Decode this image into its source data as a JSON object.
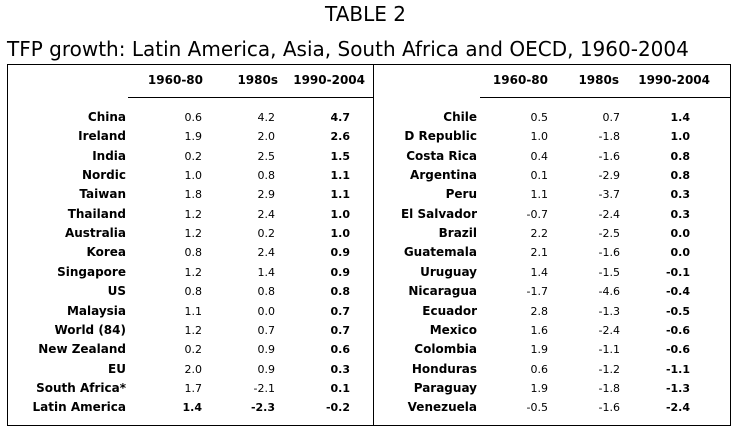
{
  "table_title": "TABLE 2",
  "subtitle": "TFP growth: Latin America, Asia, South Africa and OECD, 1960-2004",
  "columns": [
    "1960-80",
    "1980s",
    "1990-2004"
  ],
  "left_rows": [
    {
      "label": "China",
      "v1": "0.6",
      "v2": "4.2",
      "v3": "4.7",
      "bold": [
        false,
        false,
        true
      ]
    },
    {
      "label": "Ireland",
      "v1": "1.9",
      "v2": "2.0",
      "v3": "2.6",
      "bold": [
        false,
        false,
        true
      ]
    },
    {
      "label": "India",
      "v1": "0.2",
      "v2": "2.5",
      "v3": "1.5",
      "bold": [
        false,
        false,
        true
      ]
    },
    {
      "label": "Nordic",
      "v1": "1.0",
      "v2": "0.8",
      "v3": "1.1",
      "bold": [
        false,
        false,
        true
      ]
    },
    {
      "label": "Taiwan",
      "v1": "1.8",
      "v2": "2.9",
      "v3": "1.1",
      "bold": [
        false,
        false,
        true
      ]
    },
    {
      "label": "Thailand",
      "v1": "1.2",
      "v2": "2.4",
      "v3": "1.0",
      "bold": [
        false,
        false,
        true
      ]
    },
    {
      "label": "Australia",
      "v1": "1.2",
      "v2": "0.2",
      "v3": "1.0",
      "bold": [
        false,
        false,
        true
      ]
    },
    {
      "label": "Korea",
      "v1": "0.8",
      "v2": "2.4",
      "v3": "0.9",
      "bold": [
        false,
        false,
        true
      ]
    },
    {
      "label": "Singapore",
      "v1": "1.2",
      "v2": "1.4",
      "v3": "0.9",
      "bold": [
        false,
        false,
        true
      ]
    },
    {
      "label": "US",
      "v1": "0.8",
      "v2": "0.8",
      "v3": "0.8",
      "bold": [
        false,
        false,
        true
      ]
    },
    {
      "label": "Malaysia",
      "v1": "1.1",
      "v2": "0.0",
      "v3": "0.7",
      "bold": [
        false,
        false,
        true
      ]
    },
    {
      "label": "World (84)",
      "v1": "1.2",
      "v2": "0.7",
      "v3": "0.7",
      "bold": [
        false,
        false,
        true
      ]
    },
    {
      "label": "New Zealand",
      "v1": "0.2",
      "v2": "0.9",
      "v3": "0.6",
      "bold": [
        false,
        false,
        true
      ]
    },
    {
      "label": "EU",
      "v1": "2.0",
      "v2": "0.9",
      "v3": "0.3",
      "bold": [
        false,
        false,
        true
      ]
    },
    {
      "label": "South Africa*",
      "v1": "1.7",
      "v2": "-2.1",
      "v3": "0.1",
      "bold": [
        false,
        false,
        true
      ]
    },
    {
      "label": "Latin America",
      "v1": "1.4",
      "v2": "-2.3",
      "v3": "-0.2",
      "bold": [
        true,
        true,
        true
      ]
    }
  ],
  "right_rows": [
    {
      "label": "Chile",
      "v1": "0.5",
      "v2": "0.7",
      "v3": "1.4"
    },
    {
      "label": "D Republic",
      "v1": "1.0",
      "v2": "-1.8",
      "v3": "1.0"
    },
    {
      "label": "Costa Rica",
      "v1": "0.4",
      "v2": "-1.6",
      "v3": "0.8"
    },
    {
      "label": "Argentina",
      "v1": "0.1",
      "v2": "-2.9",
      "v3": "0.8"
    },
    {
      "label": "Peru",
      "v1": "1.1",
      "v2": "-3.7",
      "v3": "0.3"
    },
    {
      "label": "El Salvador",
      "v1": "-0.7",
      "v2": "-2.4",
      "v3": "0.3"
    },
    {
      "label": "Brazil",
      "v1": "2.2",
      "v2": "-2.5",
      "v3": "0.0"
    },
    {
      "label": "Guatemala",
      "v1": "2.1",
      "v2": "-1.6",
      "v3": "0.0"
    },
    {
      "label": "Uruguay",
      "v1": "1.4",
      "v2": "-1.5",
      "v3": "-0.1"
    },
    {
      "label": "Nicaragua",
      "v1": "-1.7",
      "v2": "-4.6",
      "v3": "-0.4"
    },
    {
      "label": "Ecuador",
      "v1": "2.8",
      "v2": "-1.3",
      "v3": "-0.5"
    },
    {
      "label": "Mexico",
      "v1": "1.6",
      "v2": "-2.4",
      "v3": "-0.6"
    },
    {
      "label": "Colombia",
      "v1": "1.9",
      "v2": "-1.1",
      "v3": "-0.6"
    },
    {
      "label": "Honduras",
      "v1": "0.6",
      "v2": "-1.2",
      "v3": "-1.1"
    },
    {
      "label": "Paraguay",
      "v1": "1.9",
      "v2": "-1.8",
      "v3": "-1.3"
    },
    {
      "label": "Venezuela",
      "v1": "-0.5",
      "v2": "-1.6",
      "v3": "-2.4"
    }
  ]
}
